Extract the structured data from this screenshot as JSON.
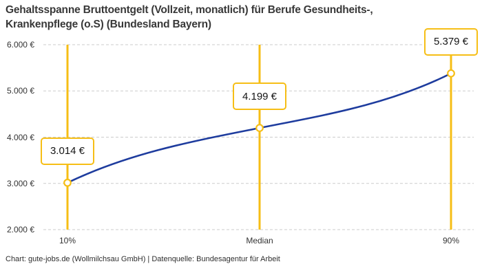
{
  "header": {
    "title": "Gehaltsspanne Bruttoentgelt (Vollzeit, monatlich) für Berufe Gesundheits-, Krankenpflege (o.S) (Bundesland Bayern)"
  },
  "footer": {
    "credit": "Chart: gute-jobs.de (Wollmilchsau GmbH) | Datenquelle: Bundesagentur für Arbeit"
  },
  "chart_data": {
    "type": "line",
    "title": "Gehaltsspanne Bruttoentgelt (Vollzeit, monatlich) für Berufe Gesundheits-, Krankenpflege (o.S) (Bundesland Bayern)",
    "categories": [
      "10%",
      "Median",
      "90%"
    ],
    "values": [
      3014,
      4199,
      5379
    ],
    "value_labels": [
      "3.014 €",
      "4.199 €",
      "5.379 €"
    ],
    "currency": "EUR",
    "ylim": [
      2000,
      6000
    ],
    "ytick_values": [
      6000,
      5000,
      4000,
      3000,
      2000
    ],
    "ytick_labels": [
      "6.000 €",
      "5.000 €",
      "4.000 €",
      "3.000 €",
      "2.000 €"
    ],
    "xlabel": "",
    "ylabel": "",
    "grid": "horizontal-dashed",
    "legend": "none",
    "marker_style": "open-circle",
    "colors": {
      "line": "#1E3C9E",
      "accent": "#F6BE15",
      "grid": "#CBCBCB",
      "marker_fill": "#FFFFFF",
      "label_text": "#141414"
    }
  }
}
